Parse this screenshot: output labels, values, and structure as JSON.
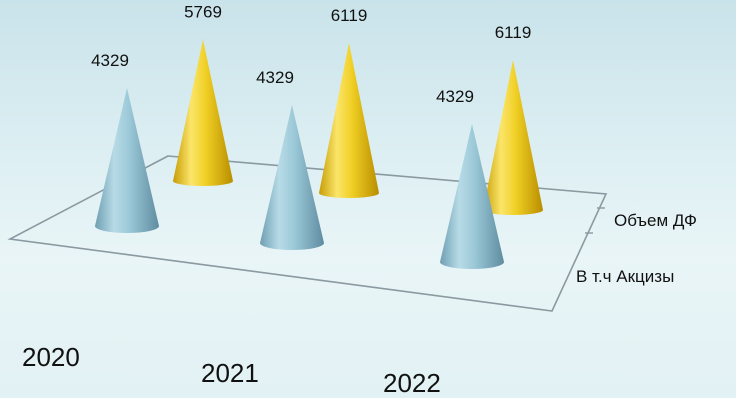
{
  "chart_data": {
    "type": "bar",
    "style": "3d-cone",
    "categories": [
      "2020",
      "2021",
      "2022"
    ],
    "series": [
      {
        "name": "В т.ч Акцизы",
        "values": [
          4329,
          4329,
          4329
        ],
        "color": "#8fc1d2"
      },
      {
        "name": "Объем ДФ",
        "values": [
          5769,
          6119,
          6119
        ],
        "color": "#e8c315"
      }
    ],
    "data_labels": true,
    "legend": "depth-axis-right",
    "grid": false
  }
}
